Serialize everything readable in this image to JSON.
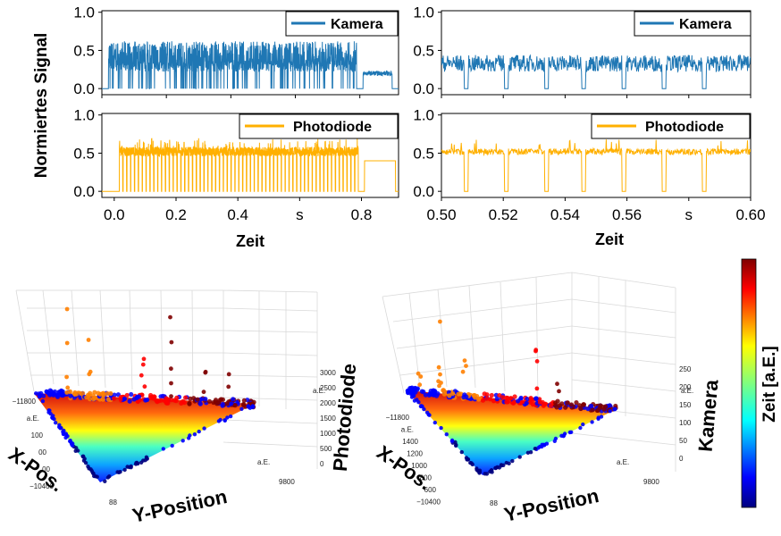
{
  "colors": {
    "kamera": "#1f77b4",
    "photodiode": "#ffb000",
    "colormap": [
      "#00007f",
      "#0000ff",
      "#007fff",
      "#00ffff",
      "#7fff7f",
      "#ffff00",
      "#ff7f00",
      "#ff0000",
      "#7f0000"
    ]
  },
  "shared": {
    "ylabel": "Normiertes  Signal",
    "xlabel": "Zeit"
  },
  "chart_data": [
    {
      "id": "top-left-kamera",
      "type": "line",
      "series": [
        {
          "name": "Kamera",
          "color": "#1f77b4"
        }
      ],
      "xlim": [
        0.0,
        0.92
      ],
      "ylim": [
        0.0,
        1.0
      ],
      "yticks": [
        "0.0",
        "0.5",
        "1.0"
      ],
      "xticks": [],
      "segments": [
        {
          "x_start": 0.0,
          "x_end": 0.02,
          "level": 0.0
        },
        {
          "x_start": 0.02,
          "x_end": 0.79,
          "level": 0.35,
          "peak": 0.62,
          "dips_to": 0.0
        },
        {
          "x_start": 0.79,
          "x_end": 0.81,
          "level": 0.0
        },
        {
          "x_start": 0.81,
          "x_end": 0.9,
          "level": 0.2
        },
        {
          "x_start": 0.9,
          "x_end": 0.92,
          "level": 0.0
        }
      ]
    },
    {
      "id": "top-right-kamera",
      "type": "line",
      "series": [
        {
          "name": "Kamera",
          "color": "#1f77b4"
        }
      ],
      "xlim": [
        0.5,
        0.6
      ],
      "ylim": [
        0.0,
        1.0
      ],
      "yticks": [
        "0.0",
        "0.5",
        "1.0"
      ],
      "xticks": [],
      "level": 0.33,
      "dips_at": [
        0.508,
        0.521,
        0.534,
        0.546,
        0.559,
        0.572,
        0.585
      ]
    },
    {
      "id": "bottom-left-photodiode",
      "type": "line",
      "series": [
        {
          "name": "Photodiode",
          "color": "#ffb000"
        }
      ],
      "xlim": [
        -0.04,
        0.92
      ],
      "ylim": [
        0.0,
        1.0
      ],
      "yticks": [
        "0.0",
        "0.5",
        "1.0"
      ],
      "xticks": [
        "0.0",
        "0.2",
        "0.4",
        "s",
        "0.8"
      ],
      "xtick_values": [
        0.0,
        0.2,
        0.4,
        0.6,
        0.8
      ],
      "xlabel": "Zeit",
      "pulse_count": 62,
      "pulse_level": 0.52,
      "segments": [
        {
          "x_start": 0.0,
          "x_end": 0.015,
          "level": 0.0
        },
        {
          "x_start": 0.015,
          "x_end": 0.79,
          "level": 0.52
        },
        {
          "x_start": 0.79,
          "x_end": 0.81,
          "level": 0.0
        },
        {
          "x_start": 0.81,
          "x_end": 0.91,
          "level": 0.4
        },
        {
          "x_start": 0.91,
          "x_end": 0.92,
          "level": 0.0
        }
      ]
    },
    {
      "id": "bottom-right-photodiode",
      "type": "line",
      "series": [
        {
          "name": "Photodiode",
          "color": "#ffb000"
        }
      ],
      "xlim": [
        0.5,
        0.6
      ],
      "ylim": [
        0.0,
        1.0
      ],
      "yticks": [
        "0.0",
        "0.5",
        "1.0"
      ],
      "xticks": [
        "0.50",
        "0.52",
        "0.54",
        "0.56",
        "s",
        "0.60"
      ],
      "xtick_values": [
        0.5,
        0.52,
        0.54,
        0.56,
        0.58,
        0.6
      ],
      "xlabel": "Zeit",
      "level": 0.52,
      "dips_at": [
        0.508,
        0.521,
        0.534,
        0.546,
        0.559,
        0.572,
        0.585
      ]
    },
    {
      "id": "scatter3d-photodiode",
      "type": "scatter",
      "projection": "3d",
      "zlabel": "Photodiode",
      "xlabel": "X-Pos.",
      "ylabel": "Y-Position",
      "ztick_labels": [
        "0",
        "500",
        "1000",
        "1500",
        "2000",
        "2500",
        "3000"
      ],
      "z_unit": "a.E.",
      "x_tick_labels": [
        "−11800",
        "a.E.",
        "100",
        "00",
        "00",
        "−10400"
      ],
      "y_tick_labels": [
        "88",
        "a.E.",
        "9800"
      ],
      "colorbar": "Zeit [a.E.]"
    },
    {
      "id": "scatter3d-kamera",
      "type": "scatter",
      "projection": "3d",
      "zlabel": "Kamera",
      "xlabel": "X-Pos.",
      "ylabel": "Y-Position",
      "ztick_labels": [
        "0",
        "50",
        "100",
        "150",
        "200",
        "250"
      ],
      "z_unit": "a.E.",
      "x_tick_labels": [
        "−11800",
        "a.E.",
        "1400",
        "1200",
        "1000",
        "800",
        "600",
        "−10400"
      ],
      "y_tick_labels": [
        "88",
        "a.E.",
        "9800"
      ],
      "colorbar": "Zeit [a.E.]"
    }
  ],
  "colorbar": {
    "label": "Zeit [a.E.]"
  }
}
